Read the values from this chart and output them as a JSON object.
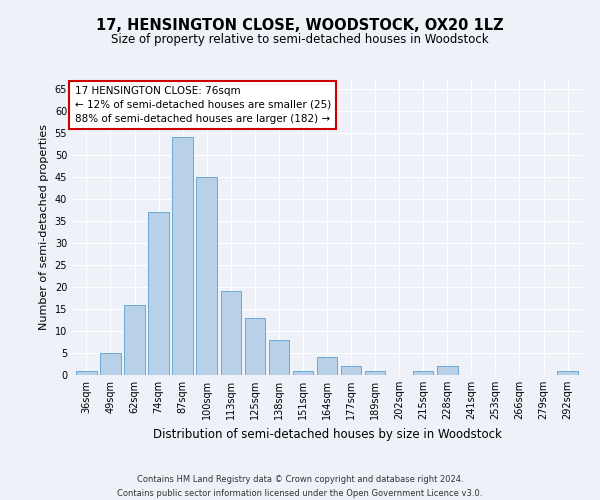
{
  "title": "17, HENSINGTON CLOSE, WOODSTOCK, OX20 1LZ",
  "subtitle": "Size of property relative to semi-detached houses in Woodstock",
  "xlabel": "Distribution of semi-detached houses by size in Woodstock",
  "ylabel": "Number of semi-detached properties",
  "categories": [
    "36sqm",
    "49sqm",
    "62sqm",
    "74sqm",
    "87sqm",
    "100sqm",
    "113sqm",
    "125sqm",
    "138sqm",
    "151sqm",
    "164sqm",
    "177sqm",
    "189sqm",
    "202sqm",
    "215sqm",
    "228sqm",
    "241sqm",
    "253sqm",
    "266sqm",
    "279sqm",
    "292sqm"
  ],
  "values": [
    1,
    5,
    16,
    37,
    54,
    45,
    19,
    13,
    8,
    1,
    4,
    2,
    1,
    0,
    1,
    2,
    0,
    0,
    0,
    0,
    1
  ],
  "bar_color": "#b8d0e8",
  "bar_edge_color": "#6aaad4",
  "annotation_title": "17 HENSINGTON CLOSE: 76sqm",
  "annotation_line1": "← 12% of semi-detached houses are smaller (25)",
  "annotation_line2": "88% of semi-detached houses are larger (182) →",
  "annotation_box_color": "#ffffff",
  "annotation_box_edge": "#cc0000",
  "ylim": [
    0,
    67
  ],
  "yticks": [
    0,
    5,
    10,
    15,
    20,
    25,
    30,
    35,
    40,
    45,
    50,
    55,
    60,
    65
  ],
  "footer_line1": "Contains HM Land Registry data © Crown copyright and database right 2024.",
  "footer_line2": "Contains public sector information licensed under the Open Government Licence v3.0.",
  "bg_color": "#eef2f8",
  "grid_color": "#ffffff",
  "title_fontsize": 10.5,
  "subtitle_fontsize": 8.5,
  "tick_fontsize": 7,
  "ylabel_fontsize": 8,
  "xlabel_fontsize": 8.5,
  "annotation_fontsize": 7.5,
  "footer_fontsize": 6
}
